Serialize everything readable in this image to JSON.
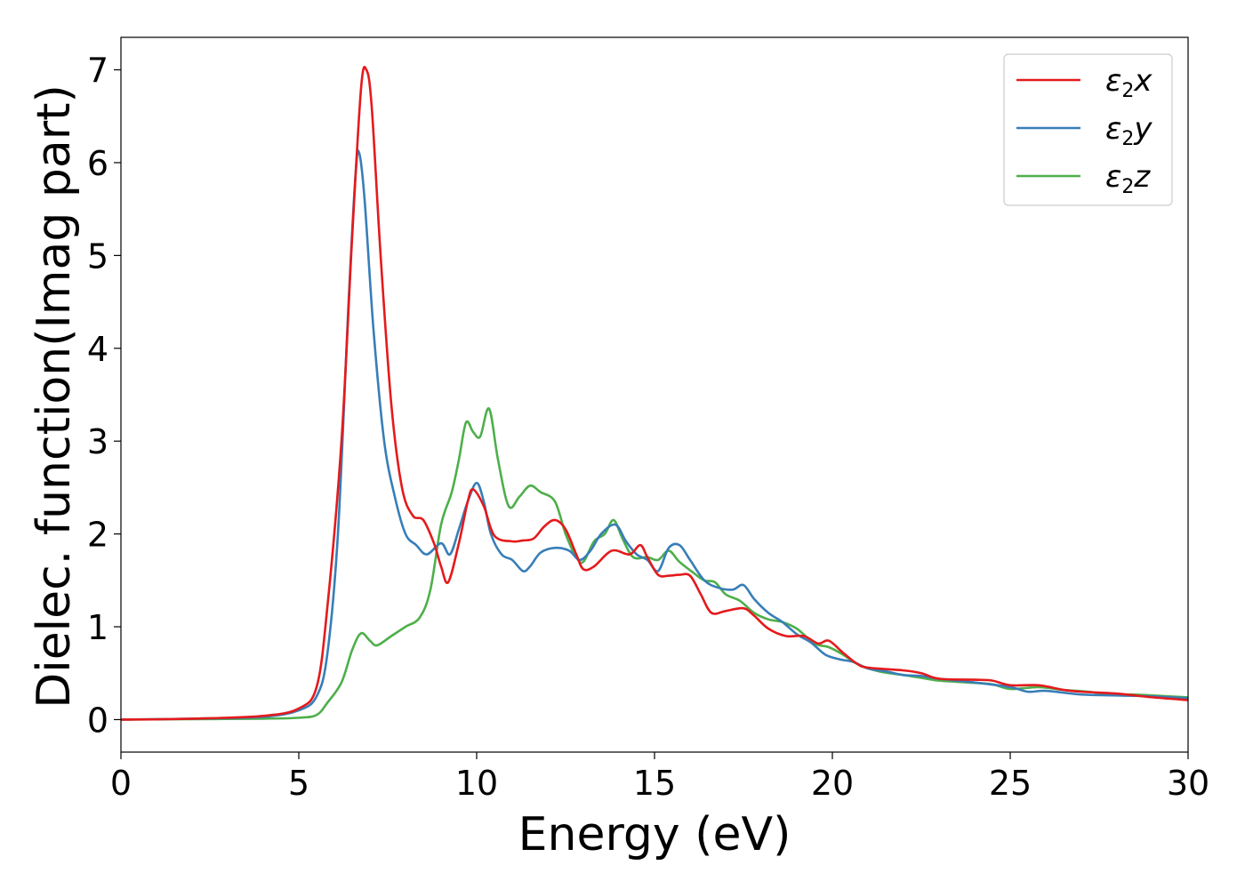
{
  "chart_data": {
    "type": "line",
    "title": "",
    "xlabel": "Energy (eV)",
    "ylabel": "Dielec. function(Imag part)",
    "xlim": [
      0,
      30
    ],
    "ylim": [
      -0.35,
      7.35
    ],
    "xticks": [
      0,
      5,
      10,
      15,
      20,
      25,
      30
    ],
    "yticks": [
      0,
      1,
      2,
      3,
      4,
      5,
      6,
      7
    ],
    "grid": false,
    "legend_position": "top-right",
    "series": [
      {
        "name": "ε2x",
        "legend": {
          "base": "ε",
          "sub": "2",
          "suffix": "x"
        },
        "color": "#e41a1c",
        "points": [
          [
            0,
            0
          ],
          [
            2,
            0.01
          ],
          [
            4,
            0.04
          ],
          [
            5,
            0.12
          ],
          [
            5.5,
            0.35
          ],
          [
            5.8,
            1.2
          ],
          [
            6.2,
            3.0
          ],
          [
            6.5,
            5.2
          ],
          [
            6.75,
            6.8
          ],
          [
            6.9,
            7.0
          ],
          [
            7.05,
            6.6
          ],
          [
            7.3,
            5.0
          ],
          [
            7.6,
            3.4
          ],
          [
            7.9,
            2.5
          ],
          [
            8.2,
            2.2
          ],
          [
            8.5,
            2.15
          ],
          [
            8.8,
            1.9
          ],
          [
            9.0,
            1.65
          ],
          [
            9.2,
            1.48
          ],
          [
            9.5,
            1.9
          ],
          [
            9.75,
            2.35
          ],
          [
            9.9,
            2.48
          ],
          [
            10.2,
            2.3
          ],
          [
            10.5,
            1.98
          ],
          [
            11.0,
            1.92
          ],
          [
            11.3,
            1.93
          ],
          [
            11.6,
            1.95
          ],
          [
            11.9,
            2.08
          ],
          [
            12.2,
            2.15
          ],
          [
            12.5,
            2.05
          ],
          [
            12.8,
            1.78
          ],
          [
            13.0,
            1.62
          ],
          [
            13.3,
            1.65
          ],
          [
            13.8,
            1.82
          ],
          [
            14.3,
            1.78
          ],
          [
            14.6,
            1.88
          ],
          [
            14.8,
            1.75
          ],
          [
            15.1,
            1.56
          ],
          [
            15.4,
            1.55
          ],
          [
            15.7,
            1.56
          ],
          [
            16.0,
            1.55
          ],
          [
            16.3,
            1.35
          ],
          [
            16.6,
            1.15
          ],
          [
            17.0,
            1.17
          ],
          [
            17.5,
            1.2
          ],
          [
            17.8,
            1.12
          ],
          [
            18.2,
            0.98
          ],
          [
            18.7,
            0.9
          ],
          [
            19.2,
            0.9
          ],
          [
            19.6,
            0.82
          ],
          [
            19.9,
            0.85
          ],
          [
            20.3,
            0.72
          ],
          [
            20.7,
            0.6
          ],
          [
            21.0,
            0.56
          ],
          [
            22.0,
            0.53
          ],
          [
            22.5,
            0.5
          ],
          [
            23.0,
            0.44
          ],
          [
            24.0,
            0.43
          ],
          [
            24.5,
            0.42
          ],
          [
            25.0,
            0.37
          ],
          [
            25.8,
            0.37
          ],
          [
            26.5,
            0.32
          ],
          [
            27.0,
            0.3
          ],
          [
            28.0,
            0.28
          ],
          [
            29.0,
            0.24
          ],
          [
            30.0,
            0.21
          ]
        ]
      },
      {
        "name": "ε2y",
        "legend": {
          "base": "ε",
          "sub": "2",
          "suffix": "y"
        },
        "color": "#377eb8",
        "points": [
          [
            0,
            0
          ],
          [
            2,
            0.01
          ],
          [
            4,
            0.03
          ],
          [
            5,
            0.1
          ],
          [
            5.5,
            0.25
          ],
          [
            5.8,
            0.7
          ],
          [
            6.1,
            2.0
          ],
          [
            6.4,
            4.5
          ],
          [
            6.6,
            5.9
          ],
          [
            6.7,
            6.1
          ],
          [
            6.85,
            5.6
          ],
          [
            7.1,
            4.2
          ],
          [
            7.4,
            3.0
          ],
          [
            7.7,
            2.4
          ],
          [
            8.0,
            2.0
          ],
          [
            8.3,
            1.88
          ],
          [
            8.6,
            1.78
          ],
          [
            9.0,
            1.9
          ],
          [
            9.25,
            1.78
          ],
          [
            9.5,
            2.05
          ],
          [
            9.75,
            2.35
          ],
          [
            10.0,
            2.55
          ],
          [
            10.2,
            2.35
          ],
          [
            10.4,
            2.0
          ],
          [
            10.7,
            1.78
          ],
          [
            11.0,
            1.72
          ],
          [
            11.3,
            1.6
          ],
          [
            11.5,
            1.65
          ],
          [
            11.8,
            1.8
          ],
          [
            12.2,
            1.85
          ],
          [
            12.6,
            1.82
          ],
          [
            12.9,
            1.72
          ],
          [
            13.2,
            1.82
          ],
          [
            13.5,
            2.0
          ],
          [
            13.9,
            2.1
          ],
          [
            14.2,
            1.92
          ],
          [
            14.5,
            1.78
          ],
          [
            14.8,
            1.72
          ],
          [
            15.1,
            1.6
          ],
          [
            15.4,
            1.85
          ],
          [
            15.7,
            1.88
          ],
          [
            16.0,
            1.72
          ],
          [
            16.4,
            1.5
          ],
          [
            16.8,
            1.42
          ],
          [
            17.2,
            1.4
          ],
          [
            17.5,
            1.45
          ],
          [
            17.8,
            1.3
          ],
          [
            18.2,
            1.15
          ],
          [
            18.6,
            1.05
          ],
          [
            19.0,
            0.92
          ],
          [
            19.4,
            0.83
          ],
          [
            19.8,
            0.7
          ],
          [
            20.2,
            0.65
          ],
          [
            20.6,
            0.62
          ],
          [
            21.0,
            0.55
          ],
          [
            21.5,
            0.52
          ],
          [
            22.0,
            0.48
          ],
          [
            22.5,
            0.47
          ],
          [
            23.0,
            0.44
          ],
          [
            24.0,
            0.4
          ],
          [
            25.0,
            0.35
          ],
          [
            25.5,
            0.3
          ],
          [
            26.0,
            0.31
          ],
          [
            27.0,
            0.27
          ],
          [
            28.0,
            0.26
          ],
          [
            29.0,
            0.25
          ],
          [
            30.0,
            0.23
          ]
        ]
      },
      {
        "name": "ε2z",
        "legend": {
          "base": "ε",
          "sub": "2",
          "suffix": "z"
        },
        "color": "#4daf4a",
        "points": [
          [
            0,
            0
          ],
          [
            2,
            0.005
          ],
          [
            4,
            0.01
          ],
          [
            5,
            0.02
          ],
          [
            5.5,
            0.05
          ],
          [
            5.8,
            0.18
          ],
          [
            6.2,
            0.4
          ],
          [
            6.5,
            0.75
          ],
          [
            6.75,
            0.93
          ],
          [
            7.0,
            0.85
          ],
          [
            7.2,
            0.8
          ],
          [
            7.6,
            0.9
          ],
          [
            8.0,
            1.0
          ],
          [
            8.4,
            1.1
          ],
          [
            8.7,
            1.4
          ],
          [
            9.0,
            2.1
          ],
          [
            9.3,
            2.45
          ],
          [
            9.5,
            2.8
          ],
          [
            9.7,
            3.2
          ],
          [
            9.9,
            3.1
          ],
          [
            10.1,
            3.05
          ],
          [
            10.35,
            3.35
          ],
          [
            10.6,
            2.8
          ],
          [
            10.9,
            2.3
          ],
          [
            11.2,
            2.4
          ],
          [
            11.5,
            2.52
          ],
          [
            11.8,
            2.45
          ],
          [
            12.2,
            2.35
          ],
          [
            12.5,
            2.0
          ],
          [
            12.8,
            1.75
          ],
          [
            13.0,
            1.7
          ],
          [
            13.3,
            1.92
          ],
          [
            13.6,
            2.0
          ],
          [
            13.85,
            2.15
          ],
          [
            14.1,
            1.95
          ],
          [
            14.4,
            1.75
          ],
          [
            14.8,
            1.75
          ],
          [
            15.1,
            1.72
          ],
          [
            15.4,
            1.82
          ],
          [
            15.7,
            1.7
          ],
          [
            16.1,
            1.58
          ],
          [
            16.4,
            1.5
          ],
          [
            16.7,
            1.48
          ],
          [
            17.0,
            1.35
          ],
          [
            17.4,
            1.28
          ],
          [
            17.8,
            1.15
          ],
          [
            18.2,
            1.08
          ],
          [
            18.6,
            1.05
          ],
          [
            19.0,
            0.98
          ],
          [
            19.5,
            0.82
          ],
          [
            19.9,
            0.78
          ],
          [
            20.3,
            0.7
          ],
          [
            20.7,
            0.6
          ],
          [
            21.3,
            0.52
          ],
          [
            22.0,
            0.48
          ],
          [
            22.5,
            0.45
          ],
          [
            23.0,
            0.42
          ],
          [
            23.8,
            0.4
          ],
          [
            24.5,
            0.38
          ],
          [
            25.0,
            0.33
          ],
          [
            25.8,
            0.35
          ],
          [
            26.5,
            0.32
          ],
          [
            27.2,
            0.3
          ],
          [
            27.8,
            0.27
          ],
          [
            28.5,
            0.27
          ],
          [
            29.0,
            0.26
          ],
          [
            30.0,
            0.24
          ]
        ]
      }
    ]
  }
}
